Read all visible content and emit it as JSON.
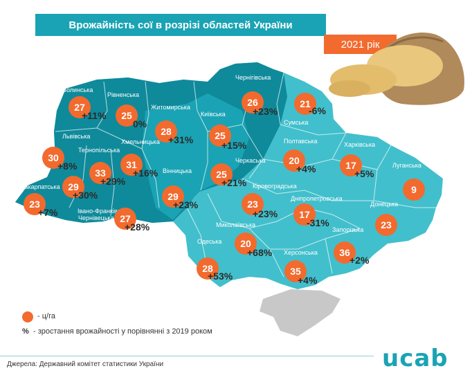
{
  "title": "Врожайність сої в розрізі областей України",
  "year": "2021 рік",
  "colors": {
    "accent": "#1aa3b4",
    "dark": "#0f8a9b",
    "medium": "#1aa3b4",
    "light": "#42bfcc",
    "badge": "#f26a2e",
    "crimea": "#c8c8c8"
  },
  "regions": [
    {
      "name": "Волинська",
      "yield": "27",
      "change": "+11%"
    },
    {
      "name": "Рівненська",
      "yield": "25",
      "change": "0%"
    },
    {
      "name": "Житомирська",
      "yield": "28",
      "change": "+31%"
    },
    {
      "name": "Київська",
      "yield": "25",
      "change": "+15%"
    },
    {
      "name": "Чернігівська",
      "yield": "26",
      "change": "+23%"
    },
    {
      "name": "Сумська",
      "yield": "21",
      "change": "-6%"
    },
    {
      "name": "Львівська",
      "yield": "30",
      "change": "+8%"
    },
    {
      "name": "Тернопільська",
      "yield": "33",
      "change": "+29%"
    },
    {
      "name": "Хмельницька",
      "yield": "31",
      "change": "+16%"
    },
    {
      "name": "Закарпатська",
      "yield": "23",
      "change": "+7%"
    },
    {
      "name": "Івано-Франківська",
      "yield": "29",
      "change": "+30%"
    },
    {
      "name": "Чернівецька",
      "yield": "27",
      "change": "+28%"
    },
    {
      "name": "Вінницька",
      "yield": "29",
      "change": "+23%"
    },
    {
      "name": "Черкаська",
      "yield": "25",
      "change": "+21%"
    },
    {
      "name": "Полтавська",
      "yield": "20",
      "change": "+4%"
    },
    {
      "name": "Харківська",
      "yield": "17",
      "change": "+5%"
    },
    {
      "name": "Луганська",
      "yield": "9",
      "change": ""
    },
    {
      "name": "Кіровоградська",
      "yield": "23",
      "change": "+23%"
    },
    {
      "name": "Дніпропетровська",
      "yield": "17",
      "change": "-31%"
    },
    {
      "name": "Донецька",
      "yield": "23",
      "change": ""
    },
    {
      "name": "Миколаївська",
      "yield": "20",
      "change": "+68%"
    },
    {
      "name": "Одеська",
      "yield": "28",
      "change": "+53%"
    },
    {
      "name": "Запорізька",
      "yield": "36",
      "change": "+2%"
    },
    {
      "name": "Херсонська",
      "yield": "35",
      "change": "+4%"
    }
  ],
  "legend": {
    "unit_label": "- ц/га",
    "pct_symbol": "%",
    "pct_label": " - зростання врожайності у порівнянні  з 2019 роком"
  },
  "source": "Джерела: Державний комітет статистики України",
  "logo": "ucab"
}
